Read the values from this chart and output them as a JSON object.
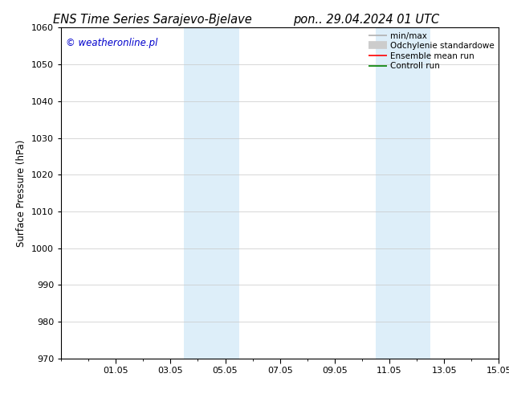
{
  "title_left": "ENS Time Series Sarajevo-Bjelave",
  "title_right": "pon.. 29.04.2024 01 UTC",
  "ylabel": "Surface Pressure (hPa)",
  "ylim": [
    970,
    1060
  ],
  "yticks": [
    970,
    980,
    990,
    1000,
    1010,
    1020,
    1030,
    1040,
    1050,
    1060
  ],
  "xlim": [
    0,
    16
  ],
  "xtick_positions": [
    2,
    4,
    6,
    8,
    10,
    12,
    14,
    16
  ],
  "xtick_labels": [
    "01.05",
    "03.05",
    "05.05",
    "07.05",
    "09.05",
    "11.05",
    "13.05",
    "15.05"
  ],
  "shaded_regions": [
    {
      "x_start": 4.5,
      "x_end": 5.5,
      "color": "#ddeef9"
    },
    {
      "x_start": 5.5,
      "x_end": 6.5,
      "color": "#ddeef9"
    },
    {
      "x_start": 11.5,
      "x_end": 12.5,
      "color": "#ddeef9"
    },
    {
      "x_start": 12.5,
      "x_end": 13.5,
      "color": "#ddeef9"
    }
  ],
  "watermark": "© weatheronline.pl",
  "watermark_color": "#0000cc",
  "legend_entries": [
    {
      "label": "min/max",
      "color": "#b0b0b0",
      "linewidth": 1.2
    },
    {
      "label": "Odchylenie standardowe",
      "color": "#cccccc",
      "linewidth": 7
    },
    {
      "label": "Ensemble mean run",
      "color": "red",
      "linewidth": 1.2
    },
    {
      "label": "Controll run",
      "color": "green",
      "linewidth": 1.2
    }
  ],
  "bg_color": "#ffffff",
  "plot_bg_color": "#ffffff",
  "grid_color": "#c8c8c8",
  "title_fontsize": 10.5,
  "ylabel_fontsize": 8.5,
  "tick_fontsize": 8,
  "legend_fontsize": 7.5,
  "watermark_fontsize": 8.5
}
